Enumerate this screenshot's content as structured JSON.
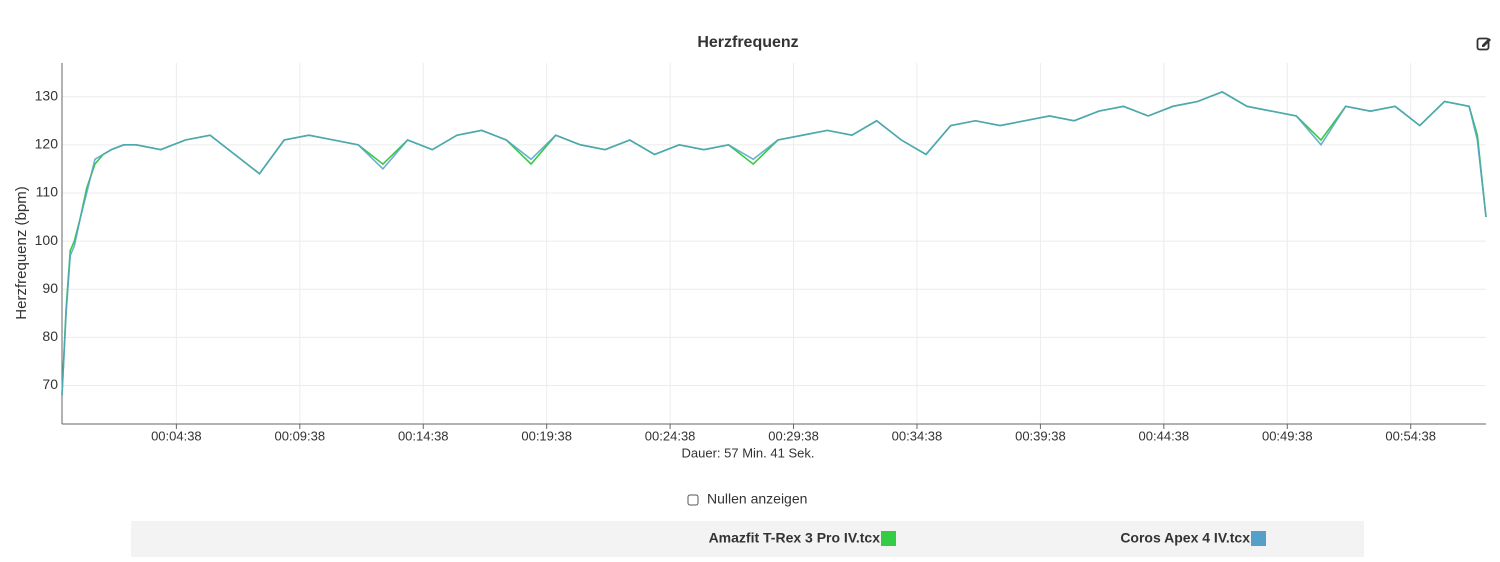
{
  "chart_data": {
    "type": "line",
    "title": "Herzfrequenz",
    "x_label": "Dauer: 57 Min. 41 Sek.",
    "y_label": "Herzfrequenz (bpm)",
    "x": [
      0,
      10,
      20,
      30,
      45,
      60,
      80,
      100,
      120,
      150,
      180,
      240,
      300,
      360,
      420,
      480,
      540,
      600,
      660,
      720,
      780,
      840,
      900,
      960,
      1020,
      1080,
      1140,
      1200,
      1260,
      1320,
      1380,
      1440,
      1500,
      1560,
      1620,
      1680,
      1740,
      1800,
      1860,
      1920,
      1980,
      2040,
      2100,
      2160,
      2220,
      2280,
      2340,
      2400,
      2460,
      2520,
      2580,
      2640,
      2700,
      2760,
      2820,
      2880,
      2940,
      3000,
      3060,
      3120,
      3180,
      3240,
      3300,
      3360,
      3420,
      3440,
      3461
    ],
    "series": [
      {
        "name": "Amazfit T-Rex 3 Pro IV.tcx",
        "color": "#33cc44",
        "values": [
          68,
          86,
          98,
          100,
          105,
          111,
          116,
          118,
          119,
          120,
          120,
          119,
          121,
          122,
          118,
          114,
          121,
          122,
          121,
          120,
          116,
          121,
          119,
          122,
          123,
          121,
          116,
          122,
          120,
          119,
          121,
          118,
          120,
          119,
          120,
          116,
          121,
          122,
          123,
          122,
          125,
          121,
          118,
          124,
          125,
          124,
          125,
          126,
          125,
          127,
          128,
          126,
          128,
          129,
          131,
          128,
          127,
          126,
          121,
          128,
          127,
          128,
          124,
          129,
          128,
          122,
          105
        ]
      },
      {
        "name": "Coros Apex 4 IV.tcx",
        "color": "#55a0c8",
        "values": [
          68,
          85,
          97,
          99,
          105,
          110,
          117,
          118,
          119,
          120,
          120,
          119,
          121,
          122,
          118,
          114,
          121,
          122,
          121,
          120,
          115,
          121,
          119,
          122,
          123,
          121,
          117,
          122,
          120,
          119,
          121,
          118,
          120,
          119,
          120,
          117,
          121,
          122,
          123,
          122,
          125,
          121,
          118,
          124,
          125,
          124,
          125,
          126,
          125,
          127,
          128,
          126,
          128,
          129,
          131,
          128,
          127,
          126,
          120,
          128,
          127,
          128,
          124,
          129,
          128,
          121,
          105
        ]
      }
    ],
    "xlim": [
      0,
      3461
    ],
    "xticks": [
      {
        "value": 278,
        "label": "00:04:38"
      },
      {
        "value": 578,
        "label": "00:09:38"
      },
      {
        "value": 878,
        "label": "00:14:38"
      },
      {
        "value": 1178,
        "label": "00:19:38"
      },
      {
        "value": 1478,
        "label": "00:24:38"
      },
      {
        "value": 1778,
        "label": "00:29:38"
      },
      {
        "value": 2078,
        "label": "00:34:38"
      },
      {
        "value": 2378,
        "label": "00:39:38"
      },
      {
        "value": 2678,
        "label": "00:44:38"
      },
      {
        "value": 2978,
        "label": "00:49:38"
      },
      {
        "value": 3278,
        "label": "00:54:38"
      }
    ],
    "ylim": [
      62,
      137
    ],
    "yticks": [
      70,
      80,
      90,
      100,
      110,
      120,
      130
    ],
    "grid": true
  },
  "controls": {
    "show_zeros": "Nullen anzeigen"
  }
}
